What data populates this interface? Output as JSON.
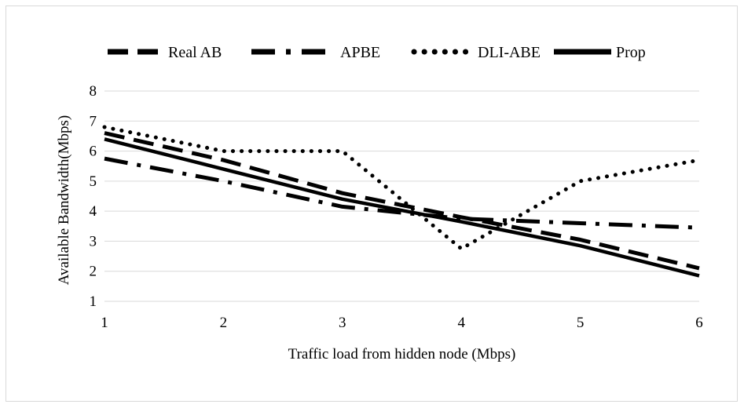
{
  "chart_data": {
    "type": "line",
    "title": "",
    "xlabel": "Traffic load from hidden node (Mbps)",
    "ylabel": "Available Bandwidth(Mbps)",
    "xlim": [
      1,
      6
    ],
    "ylim": [
      1,
      8
    ],
    "x_ticks": [
      "1",
      "2",
      "3",
      "4",
      "5",
      "6"
    ],
    "y_ticks": [
      "1",
      "2",
      "3",
      "4",
      "5",
      "6",
      "7",
      "8"
    ],
    "grid": "horizontal",
    "legend_position": "top",
    "series": [
      {
        "name": "Real AB",
        "style": "dash",
        "color": "#000000",
        "x": [
          1,
          2,
          3,
          4,
          5,
          6
        ],
        "y": [
          6.6,
          5.7,
          4.6,
          3.8,
          3.05,
          2.1
        ]
      },
      {
        "name": "APBE",
        "style": "dash-dot",
        "color": "#000000",
        "x": [
          1,
          2,
          3,
          4,
          5,
          6
        ],
        "y": [
          5.75,
          5.0,
          4.15,
          3.75,
          3.6,
          3.45
        ]
      },
      {
        "name": "DLI-ABE",
        "style": "dot",
        "color": "#000000",
        "x": [
          1,
          2,
          3,
          4,
          5,
          6
        ],
        "y": [
          6.8,
          6.0,
          6.0,
          2.75,
          5.0,
          5.7
        ]
      },
      {
        "name": "Prop",
        "style": "solid",
        "color": "#000000",
        "x": [
          1,
          2,
          3,
          4,
          5,
          6
        ],
        "y": [
          6.4,
          5.4,
          4.4,
          3.65,
          2.85,
          1.85
        ]
      }
    ]
  }
}
